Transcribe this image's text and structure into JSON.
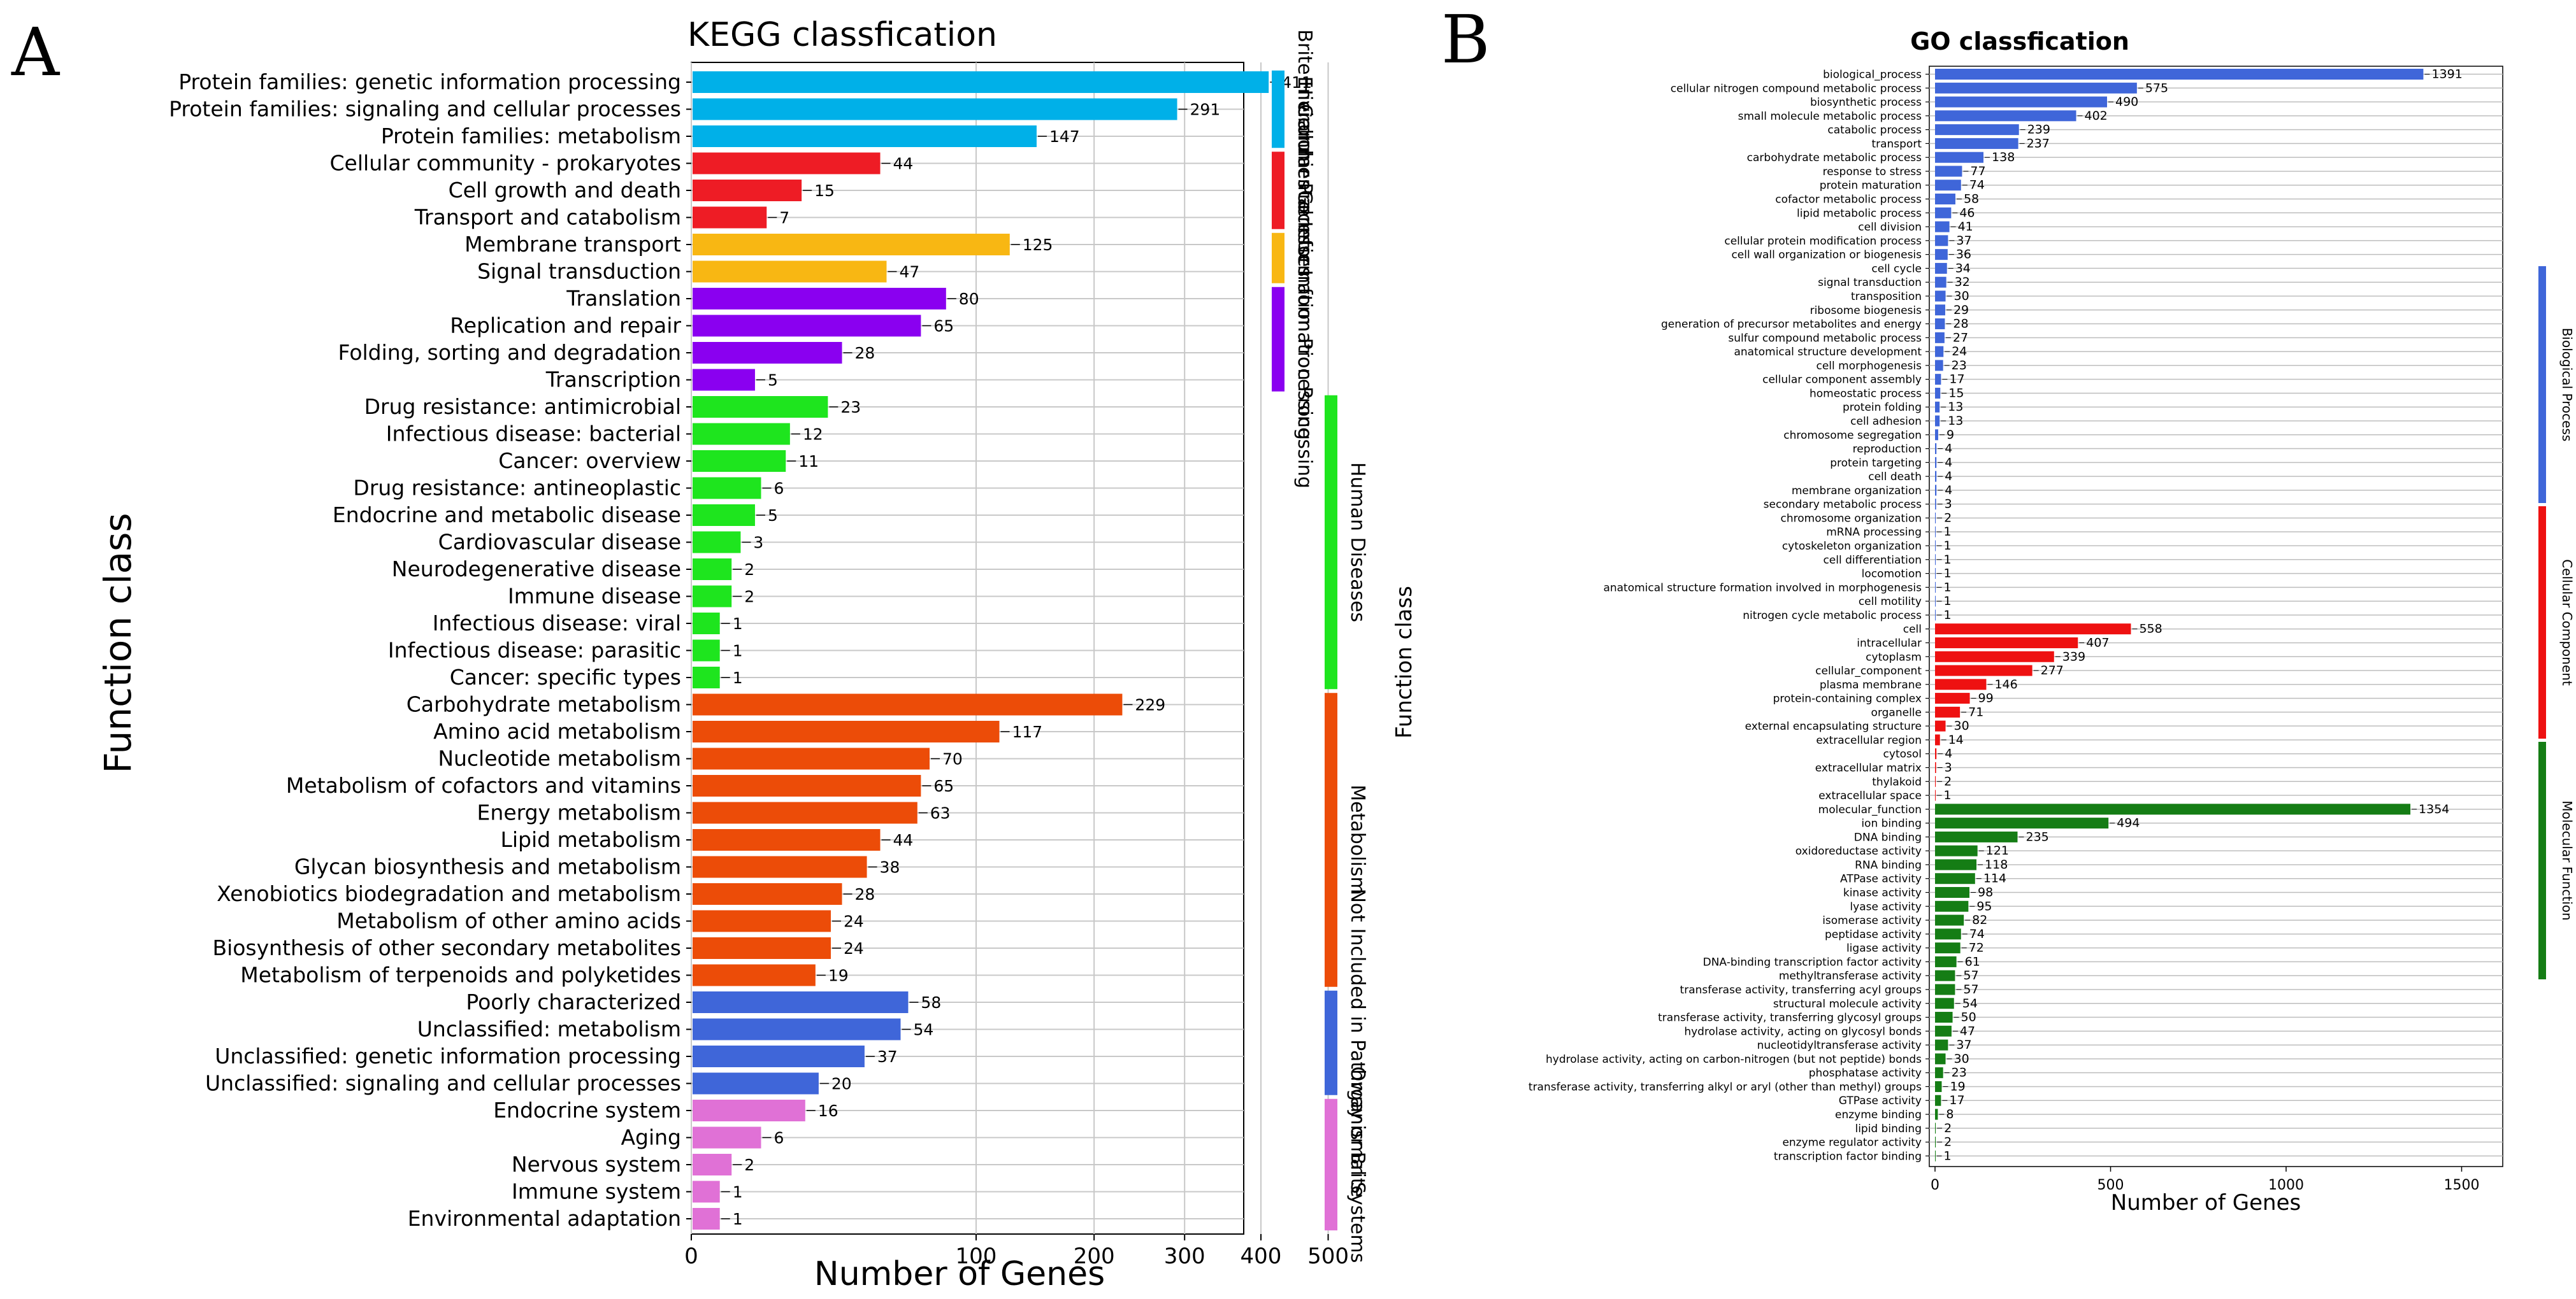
{
  "panel_a": {
    "letter": "A",
    "chart_data": {
      "type": "bar",
      "orientation": "horizontal",
      "title": "KEGG classfication",
      "xlabel": "Number of Genes",
      "ylabel": "Function class",
      "xscale": "sqrt",
      "xticks": [
        0,
        100,
        200,
        300,
        400,
        500
      ],
      "xlim": [
        0,
        530
      ],
      "grid": true,
      "right_label": "Function class",
      "groups": [
        {
          "name": "Brite Hierarchies",
          "color": "#00b0e8"
        },
        {
          "name": "Cellular Processes",
          "color": "#ee1c25"
        },
        {
          "name": "Environmental Information Processing",
          "color": "#f8b713"
        },
        {
          "name": "Genetic Information Processing",
          "color": "#8a00f0"
        },
        {
          "name": "Human Diseases",
          "color": "#1ee51e"
        },
        {
          "name": "Metabolism",
          "color": "#ec4c08"
        },
        {
          "name": "Not Included in Pathway or Brite",
          "color": "#3f66d9"
        },
        {
          "name": "Organismal Systems",
          "color": "#e071d6"
        }
      ],
      "categories": [
        "Protein families: genetic information processing",
        "Protein families: signaling and cellular processes",
        "Protein families: metabolism",
        "Cellular community - prokaryotes",
        "Cell growth and death",
        "Transport and catabolism",
        "Membrane transport",
        "Signal transduction",
        "Translation",
        "Replication and repair",
        "Folding, sorting and degradation",
        "Transcription",
        "Drug resistance: antimicrobial",
        "Infectious disease: bacterial",
        "Cancer: overview",
        "Drug resistance: antineoplastic",
        "Endocrine and metabolic disease",
        "Cardiovascular disease",
        "Neurodegenerative disease",
        "Immune disease",
        "Infectious disease: viral",
        "Infectious disease: parasitic",
        "Cancer: specific types",
        "Carbohydrate metabolism",
        "Amino acid metabolism",
        "Nucleotide metabolism",
        "Metabolism of cofactors and vitamins",
        "Energy metabolism",
        "Lipid metabolism",
        "Glycan biosynthesis and metabolism",
        "Xenobiotics biodegradation and metabolism",
        "Metabolism of other amino acids",
        "Biosynthesis of other secondary metabolites",
        "Metabolism of terpenoids and polyketides",
        "Poorly characterized",
        "Unclassified: metabolism",
        "Unclassified: genetic information processing",
        "Unclassified: signaling and cellular processes",
        "Endocrine system",
        "Aging",
        "Nervous system",
        "Immune system",
        "Environmental adaptation"
      ],
      "values": [
        411,
        291,
        147,
        44,
        15,
        7,
        125,
        47,
        80,
        65,
        28,
        5,
        23,
        12,
        11,
        6,
        5,
        3,
        2,
        2,
        1,
        1,
        1,
        229,
        117,
        70,
        65,
        63,
        44,
        38,
        28,
        24,
        24,
        19,
        58,
        54,
        37,
        20,
        16,
        6,
        2,
        1,
        1
      ],
      "group_index": [
        0,
        0,
        0,
        1,
        1,
        1,
        2,
        2,
        3,
        3,
        3,
        3,
        4,
        4,
        4,
        4,
        4,
        4,
        4,
        4,
        4,
        4,
        4,
        5,
        5,
        5,
        5,
        5,
        5,
        5,
        5,
        5,
        5,
        5,
        6,
        6,
        6,
        6,
        7,
        7,
        7,
        7,
        7
      ],
      "legend_strip_left": [
        {
          "label": "Brite Hierarchies",
          "start": 0,
          "count": 3,
          "color": "#00b0e8"
        },
        {
          "label": "Cellular Processes",
          "start": 3,
          "count": 3,
          "color": "#ee1c25"
        },
        {
          "label": "Environmental Information Processing",
          "start": 6,
          "count": 2,
          "color": "#f8b713"
        },
        {
          "label": "Genetic Information Processing",
          "start": 8,
          "count": 4,
          "color": "#8a00f0"
        }
      ],
      "legend_strip_right": [
        {
          "label": "Human Diseases",
          "start": 12,
          "count": 11,
          "color": "#1ee51e"
        },
        {
          "label": "Metabolism",
          "start": 23,
          "count": 11,
          "color": "#ec4c08"
        },
        {
          "label": "Not Included in Pathway or Brite",
          "start": 34,
          "count": 4,
          "color": "#3f66d9"
        },
        {
          "label": "Organismal Systems",
          "start": 38,
          "count": 5,
          "color": "#e071d6"
        }
      ]
    }
  },
  "panel_b": {
    "letter": "B",
    "chart_data": {
      "type": "bar",
      "orientation": "horizontal",
      "title": "GO classfication",
      "xlabel": "Number of Genes",
      "xticks": [
        0,
        500,
        1000,
        1500
      ],
      "xlim": [
        0,
        1630
      ],
      "grid": true,
      "groups": [
        {
          "name": "Biological Process",
          "color": "#3f66d9"
        },
        {
          "name": "Cellular Component",
          "color": "#ee1111"
        },
        {
          "name": "Molecular Function",
          "color": "#157d15"
        }
      ],
      "categories": [
        "biological_process",
        "cellular nitrogen compound metabolic process",
        "biosynthetic process",
        "small molecule metabolic process",
        "catabolic process",
        "transport",
        "carbohydrate metabolic process",
        "response to stress",
        "protein maturation",
        "cofactor metabolic process",
        "lipid metabolic process",
        "cell division",
        "cellular protein modification process",
        "cell wall organization or biogenesis",
        "cell cycle",
        "signal transduction",
        "transposition",
        "ribosome biogenesis",
        "generation of precursor metabolites and energy",
        "sulfur compound metabolic process",
        "anatomical structure development",
        "cell morphogenesis",
        "cellular component assembly",
        "homeostatic process",
        "protein folding",
        "cell adhesion",
        "chromosome segregation",
        "reproduction",
        "protein targeting",
        "cell death",
        "membrane organization",
        "secondary metabolic process",
        "chromosome organization",
        "mRNA processing",
        "cytoskeleton organization",
        "cell differentiation",
        "locomotion",
        "anatomical structure formation involved in morphogenesis",
        "cell motility",
        "nitrogen cycle metabolic process",
        "cell",
        "intracellular",
        "cytoplasm",
        "cellular_component",
        "plasma membrane",
        "protein-containing complex",
        "organelle",
        "external encapsulating structure",
        "extracellular region",
        "cytosol",
        "extracellular matrix",
        "thylakoid",
        "extracellular space",
        "molecular_function",
        "ion binding",
        "DNA binding",
        "oxidoreductase activity",
        "RNA binding",
        "ATPase activity",
        "kinase activity",
        "lyase activity",
        "isomerase activity",
        "peptidase activity",
        "ligase activity",
        "DNA-binding transcription factor activity",
        "methyltransferase activity",
        "transferase activity, transferring acyl groups",
        "structural molecule activity",
        "transferase activity, transferring glycosyl groups",
        "hydrolase activity, acting on glycosyl bonds",
        "nucleotidyltransferase activity",
        "hydrolase activity, acting on carbon-nitrogen (but not peptide) bonds",
        "phosphatase activity",
        "transferase activity, transferring alkyl or aryl (other than methyl) groups",
        "GTPase activity",
        "enzyme binding",
        "lipid binding",
        "enzyme regulator activity",
        "transcription factor binding"
      ],
      "values": [
        1391,
        575,
        490,
        402,
        239,
        237,
        138,
        77,
        74,
        58,
        46,
        41,
        37,
        36,
        34,
        32,
        30,
        29,
        28,
        27,
        24,
        23,
        17,
        15,
        13,
        13,
        9,
        4,
        4,
        4,
        4,
        3,
        2,
        1,
        1,
        1,
        1,
        1,
        1,
        1,
        558,
        407,
        339,
        277,
        146,
        99,
        71,
        30,
        14,
        4,
        3,
        2,
        1,
        1354,
        494,
        235,
        121,
        118,
        114,
        98,
        95,
        82,
        74,
        72,
        61,
        57,
        57,
        54,
        50,
        47,
        37,
        30,
        23,
        19,
        17,
        8,
        2,
        2,
        1
      ],
      "group_index": [
        0,
        0,
        0,
        0,
        0,
        0,
        0,
        0,
        0,
        0,
        0,
        0,
        0,
        0,
        0,
        0,
        0,
        0,
        0,
        0,
        0,
        0,
        0,
        0,
        0,
        0,
        0,
        0,
        0,
        0,
        0,
        0,
        0,
        0,
        0,
        0,
        0,
        0,
        0,
        0,
        1,
        1,
        1,
        1,
        1,
        1,
        1,
        1,
        1,
        1,
        1,
        1,
        1,
        2,
        2,
        2,
        2,
        2,
        2,
        2,
        2,
        2,
        2,
        2,
        2,
        2,
        2,
        2,
        2,
        2,
        2,
        2,
        2,
        2,
        2,
        2,
        2,
        2,
        2
      ],
      "legend_strip": [
        {
          "label": "Biological Process",
          "color": "#3f66d9"
        },
        {
          "label": "Cellular Component",
          "color": "#ee1111"
        },
        {
          "label": "Molecular Function",
          "color": "#157d15"
        }
      ]
    }
  }
}
